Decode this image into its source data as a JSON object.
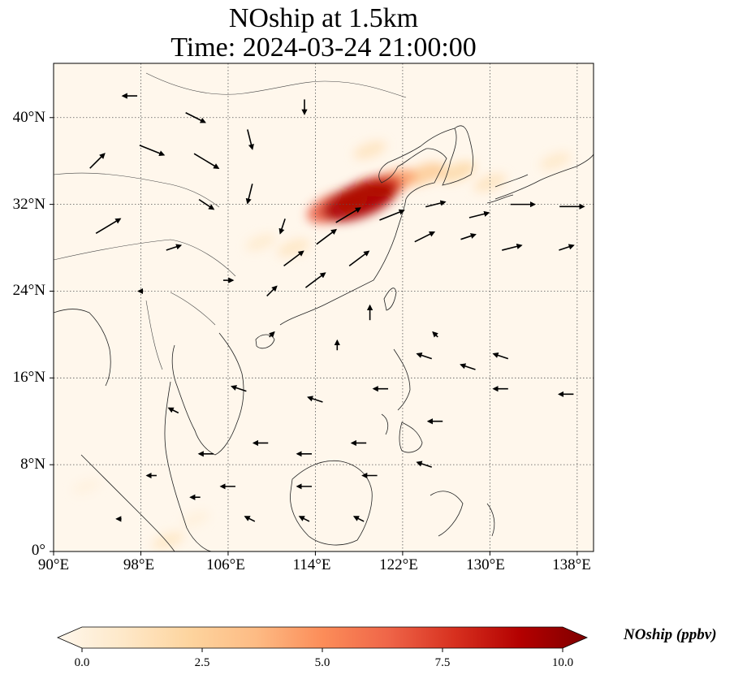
{
  "title": {
    "line1": "NOship at 1.5km",
    "line2": "Time: 2024-03-24 21:00:00"
  },
  "map": {
    "projection": "PlateCarree",
    "lon_range": [
      90,
      139.5
    ],
    "lat_range": [
      0,
      45
    ],
    "gridlines": "dotted",
    "coastlines": true,
    "country_borders": true
  },
  "axes": {
    "x_ticks": [
      "90°E",
      "98°E",
      "106°E",
      "114°E",
      "122°E",
      "130°E",
      "138°E"
    ],
    "y_ticks": [
      "0°",
      "8°N",
      "16°N",
      "24°N",
      "32°N",
      "40°N"
    ]
  },
  "colorbar": {
    "label": "NOship (ppbv)",
    "ticks": [
      "0.0",
      "2.5",
      "5.0",
      "7.5",
      "10.0"
    ],
    "min": 0,
    "max": 10,
    "extend": "both",
    "colormap": "OrRd",
    "colors": [
      "#fff7ec",
      "#fee8c8",
      "#fdd49e",
      "#fdbb84",
      "#fc8d59",
      "#ef6548",
      "#d7301f",
      "#b30000",
      "#7f0000"
    ]
  },
  "chart_data": {
    "type": "heatmap",
    "variable": "NOship",
    "units": "ppbv",
    "level": "1.5km",
    "valid_time": "2024-03-24 21:00:00",
    "value_range": [
      0,
      10
    ],
    "concentration_features": [
      {
        "lon": 118,
        "lat": 32.3,
        "value": 9.0
      },
      {
        "lon": 119,
        "lat": 33,
        "value": 7.5
      },
      {
        "lon": 116,
        "lat": 31.8,
        "value": 6.5
      },
      {
        "lon": 121,
        "lat": 34,
        "value": 4.5
      },
      {
        "lon": 124,
        "lat": 34.8,
        "value": 3.0
      },
      {
        "lon": 127,
        "lat": 35,
        "value": 2.2
      },
      {
        "lon": 112,
        "lat": 28,
        "value": 1.4
      },
      {
        "lon": 109,
        "lat": 28.5,
        "value": 1.0
      },
      {
        "lon": 119,
        "lat": 37,
        "value": 1.5
      },
      {
        "lon": 130,
        "lat": 34,
        "value": 1.5
      },
      {
        "lon": 136,
        "lat": 36,
        "value": 1.2
      },
      {
        "lon": 100.5,
        "lat": 1,
        "value": 1.3
      },
      {
        "lon": 103,
        "lat": 3,
        "value": 0.6
      },
      {
        "lon": 93,
        "lat": 6,
        "value": 0.5
      }
    ],
    "wind_vectors": [
      {
        "lon": 97,
        "lat": 42,
        "u": -3,
        "v": 0
      },
      {
        "lon": 103,
        "lat": 40,
        "u": 4,
        "v": -2
      },
      {
        "lon": 94,
        "lat": 36,
        "u": 3,
        "v": 3
      },
      {
        "lon": 99,
        "lat": 37,
        "u": 5,
        "v": -2
      },
      {
        "lon": 104,
        "lat": 36,
        "u": 5,
        "v": -3
      },
      {
        "lon": 108,
        "lat": 38,
        "u": 1,
        "v": -4
      },
      {
        "lon": 113,
        "lat": 41,
        "u": 0,
        "v": -3
      },
      {
        "lon": 108,
        "lat": 33,
        "u": -1,
        "v": -4
      },
      {
        "lon": 111,
        "lat": 30,
        "u": -1,
        "v": -3
      },
      {
        "lon": 104,
        "lat": 32,
        "u": 3,
        "v": -2
      },
      {
        "lon": 95,
        "lat": 30,
        "u": 5,
        "v": 3
      },
      {
        "lon": 101,
        "lat": 28,
        "u": 3,
        "v": 1
      },
      {
        "lon": 106,
        "lat": 25,
        "u": 2,
        "v": 0
      },
      {
        "lon": 98,
        "lat": 24,
        "u": -1,
        "v": 0
      },
      {
        "lon": 110,
        "lat": 24,
        "u": 2,
        "v": 2
      },
      {
        "lon": 115,
        "lat": 29,
        "u": 4,
        "v": 3
      },
      {
        "lon": 118,
        "lat": 27,
        "u": 4,
        "v": 3
      },
      {
        "lon": 112,
        "lat": 27,
        "u": 4,
        "v": 3
      },
      {
        "lon": 114,
        "lat": 25,
        "u": 4,
        "v": 3
      },
      {
        "lon": 117,
        "lat": 31,
        "u": 5,
        "v": 3
      },
      {
        "lon": 121,
        "lat": 31,
        "u": 5,
        "v": 2
      },
      {
        "lon": 125,
        "lat": 32,
        "u": 4,
        "v": 1
      },
      {
        "lon": 129,
        "lat": 31,
        "u": 4,
        "v": 1
      },
      {
        "lon": 133,
        "lat": 32,
        "u": 5,
        "v": 0
      },
      {
        "lon": 137.5,
        "lat": 31.8,
        "u": 5,
        "v": 0
      },
      {
        "lon": 124,
        "lat": 29,
        "u": 4,
        "v": 2
      },
      {
        "lon": 128,
        "lat": 29,
        "u": 3,
        "v": 1
      },
      {
        "lon": 132,
        "lat": 28,
        "u": 4,
        "v": 1
      },
      {
        "lon": 137,
        "lat": 28,
        "u": 3,
        "v": 1
      },
      {
        "lon": 119,
        "lat": 22,
        "u": 0,
        "v": 3
      },
      {
        "lon": 110,
        "lat": 20,
        "u": 1,
        "v": 1
      },
      {
        "lon": 116,
        "lat": 19,
        "u": 0,
        "v": 2
      },
      {
        "lon": 125,
        "lat": 20,
        "u": -1,
        "v": 1
      },
      {
        "lon": 131,
        "lat": 18,
        "u": -3,
        "v": 1
      },
      {
        "lon": 124,
        "lat": 18,
        "u": -3,
        "v": 1
      },
      {
        "lon": 128,
        "lat": 17,
        "u": -3,
        "v": 1
      },
      {
        "lon": 137,
        "lat": 14.5,
        "u": -3,
        "v": 0
      },
      {
        "lon": 131,
        "lat": 15,
        "u": -3,
        "v": 0
      },
      {
        "lon": 120,
        "lat": 15,
        "u": -3,
        "v": 0
      },
      {
        "lon": 114,
        "lat": 14,
        "u": -3,
        "v": 1
      },
      {
        "lon": 107,
        "lat": 15,
        "u": -3,
        "v": 1
      },
      {
        "lon": 101,
        "lat": 13,
        "u": -2,
        "v": 1
      },
      {
        "lon": 125,
        "lat": 12,
        "u": -3,
        "v": 0
      },
      {
        "lon": 118,
        "lat": 10,
        "u": -3,
        "v": 0
      },
      {
        "lon": 113,
        "lat": 9,
        "u": -3,
        "v": 0
      },
      {
        "lon": 109,
        "lat": 10,
        "u": -3,
        "v": 0
      },
      {
        "lon": 104,
        "lat": 9,
        "u": -3,
        "v": 0
      },
      {
        "lon": 124,
        "lat": 8,
        "u": -3,
        "v": 1
      },
      {
        "lon": 119,
        "lat": 7,
        "u": -3,
        "v": 0
      },
      {
        "lon": 113,
        "lat": 6,
        "u": -3,
        "v": 0
      },
      {
        "lon": 106,
        "lat": 6,
        "u": -3,
        "v": 0
      },
      {
        "lon": 99,
        "lat": 7,
        "u": -2,
        "v": 0
      },
      {
        "lon": 113,
        "lat": 3,
        "u": -2,
        "v": 1
      },
      {
        "lon": 118,
        "lat": 3,
        "u": -2,
        "v": 1
      },
      {
        "lon": 108,
        "lat": 3,
        "u": -2,
        "v": 1
      },
      {
        "lon": 96,
        "lat": 3,
        "u": -1,
        "v": 0
      },
      {
        "lon": 103,
        "lat": 5,
        "u": -2,
        "v": 0
      }
    ]
  }
}
